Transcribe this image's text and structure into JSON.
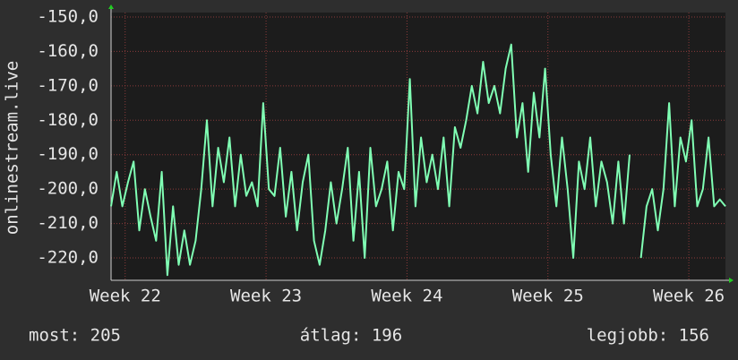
{
  "chart_data": {
    "type": "line",
    "y_axis_label": "onlinestream.live",
    "x": [
      21.9,
      21.94,
      21.98,
      22.02,
      22.06,
      22.1,
      22.14,
      22.18,
      22.22,
      22.26,
      22.3,
      22.34,
      22.38,
      22.42,
      22.46,
      22.5,
      22.54,
      22.58,
      22.62,
      22.66,
      22.7,
      22.74,
      22.78,
      22.82,
      22.86,
      22.9,
      22.94,
      22.98,
      23.02,
      23.06,
      23.1,
      23.14,
      23.18,
      23.22,
      23.26,
      23.3,
      23.34,
      23.38,
      23.42,
      23.46,
      23.5,
      23.54,
      23.58,
      23.62,
      23.66,
      23.7,
      23.74,
      23.78,
      23.82,
      23.86,
      23.9,
      23.94,
      23.98,
      24.02,
      24.06,
      24.1,
      24.14,
      24.18,
      24.22,
      24.26,
      24.3,
      24.34,
      24.38,
      24.42,
      24.46,
      24.5,
      24.54,
      24.58,
      24.62,
      24.66,
      24.7,
      24.74,
      24.78,
      24.82,
      24.86,
      24.9,
      24.94,
      24.98,
      25.02,
      25.06,
      25.1,
      25.14,
      25.18,
      25.22,
      25.26,
      25.3,
      25.34,
      25.38,
      25.42,
      25.46,
      25.5,
      25.54,
      25.58,
      25.62,
      25.66,
      25.7,
      25.74,
      25.78,
      25.82,
      25.86,
      25.9,
      25.94,
      25.98,
      26.02,
      26.06,
      26.1,
      26.14,
      26.18,
      26.22,
      26.26
    ],
    "series": [
      {
        "color": "#80ffb4",
        "values": [
          -205,
          -195,
          -205,
          -198,
          -192,
          -212,
          -200,
          -208,
          -215,
          -195,
          -225,
          -205,
          -222,
          -212,
          -222,
          -215,
          -200,
          -180,
          -205,
          -188,
          -198,
          -185,
          -205,
          -190,
          -202,
          -198,
          -205,
          -175,
          -200,
          -202,
          -188,
          -208,
          -195,
          -212,
          -198,
          -190,
          -215,
          -222,
          -212,
          -198,
          -210,
          -200,
          -188,
          -215,
          -195,
          -220,
          -188,
          -205,
          -200,
          -192,
          -212,
          -195,
          -200,
          -168,
          -205,
          -185,
          -198,
          -190,
          -200,
          -185,
          -205,
          -182,
          -188,
          -180,
          -170,
          -178,
          -163,
          -175,
          -170,
          -178,
          -165,
          -158,
          -185,
          -175,
          -195,
          -172,
          -185,
          -165,
          -190,
          -205,
          -185,
          -200,
          -220,
          -192,
          -200,
          -185,
          -205,
          -192,
          -198,
          -210,
          -192,
          -210,
          -190,
          null,
          -220,
          -205,
          -200,
          -212,
          -200,
          -175,
          -205,
          -185,
          -192,
          -180,
          -205,
          -200,
          -185,
          -205,
          -203,
          -205
        ]
      }
    ],
    "xlim": [
      21.9,
      26.26
    ],
    "xticks": [
      {
        "value": 22,
        "label": "Week 22"
      },
      {
        "value": 23,
        "label": "Week 23"
      },
      {
        "value": 24,
        "label": "Week 24"
      },
      {
        "value": 25,
        "label": "Week 25"
      },
      {
        "value": 26,
        "label": "Week 26"
      }
    ],
    "ylim": [
      -226.5,
      -148.7
    ],
    "yticks": [
      {
        "value": -220,
        "label": "-220,0"
      },
      {
        "value": -210,
        "label": "-210,0"
      },
      {
        "value": -200,
        "label": "-200,0"
      },
      {
        "value": -190,
        "label": "-190,0"
      },
      {
        "value": -180,
        "label": "-180,0"
      },
      {
        "value": -170,
        "label": "-170,0"
      },
      {
        "value": -160,
        "label": "-160,0"
      },
      {
        "value": -150,
        "label": "-150,0"
      }
    ],
    "grid": true,
    "stats": [
      "most: 205",
      "átlag: 196",
      "legjobb: 156"
    ]
  }
}
